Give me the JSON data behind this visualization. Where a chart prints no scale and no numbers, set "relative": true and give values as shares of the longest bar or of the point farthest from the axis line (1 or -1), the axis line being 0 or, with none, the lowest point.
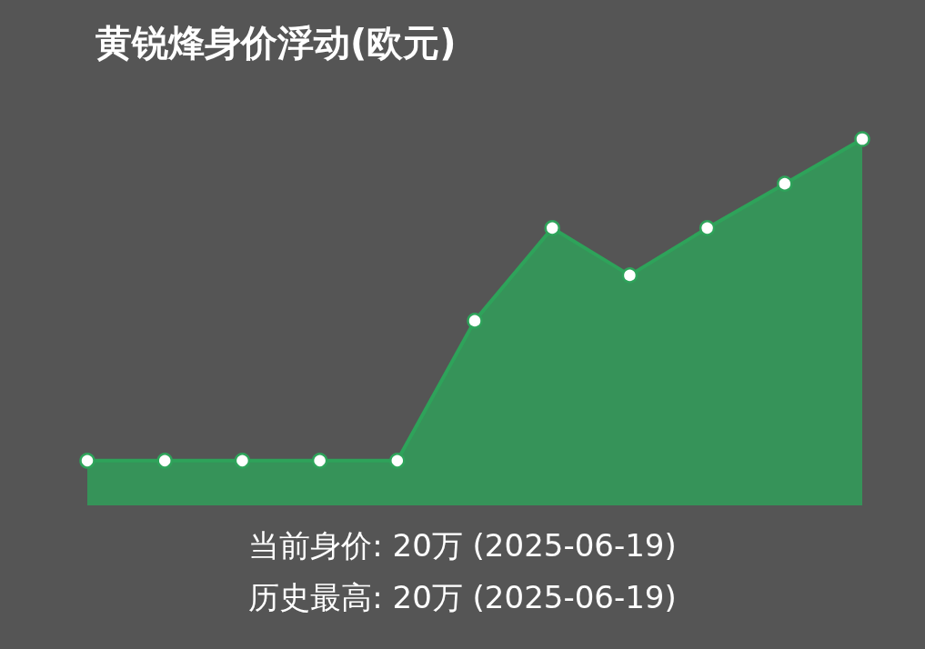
{
  "chart_data": {
    "type": "area",
    "title": "黄锐烽身价浮动(欧元)",
    "relative": true,
    "marker": "circle",
    "grid": false,
    "categories": [
      null,
      null,
      null,
      null,
      null,
      null,
      null,
      null,
      null,
      null,
      null
    ],
    "series": [
      {
        "color": "#2ea35a",
        "values": [
          0.122,
          0.122,
          0.122,
          0.122,
          0.122,
          0.504,
          0.757,
          0.628,
          0.757,
          0.878,
          1
        ]
      }
    ],
    "annotations": [
      "当前身价: 20万 (2025-06-19)",
      "历史最高: 20万 (2025-06-19)"
    ]
  }
}
